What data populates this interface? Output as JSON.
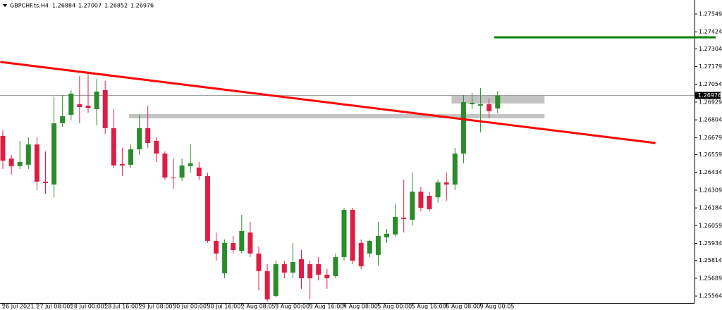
{
  "chart_data": {
    "type": "candlestick",
    "title": "GBPCHF.ts.H4",
    "up_color": "#2a8c2a",
    "down_color": "#dc1e46",
    "categories": [
      "26 Jul 2021",
      null,
      null,
      null,
      "27 Jul 08:00",
      null,
      null,
      null,
      "28 Jul 00:00",
      null,
      null,
      null,
      "28 Jul 16:00",
      null,
      null,
      null,
      "29 Jul 08:00",
      null,
      null,
      null,
      "30 Jul 00:00",
      null,
      null,
      null,
      "30 Jul 16:00",
      null,
      null,
      null,
      "2 Aug 08:05",
      null,
      null,
      null,
      "3 Aug 00:00",
      null,
      null,
      null,
      "3 Aug 16:00",
      null,
      null,
      null,
      "4 Aug 08:00",
      null,
      null,
      null,
      "5 Aug 00:00",
      null,
      null,
      null,
      "5 Aug 16:00",
      null,
      null,
      null,
      "6 Aug 08:00",
      null,
      null,
      null,
      "9 Aug 00:05",
      null,
      null
    ],
    "candles": [
      {
        "open": 1.26691,
        "high": 1.26731,
        "low": 1.26458,
        "close": 1.26517
      },
      {
        "open": 1.26532,
        "high": 1.26557,
        "low": 1.26418,
        "close": 1.26478
      },
      {
        "open": 1.26478,
        "high": 1.26656,
        "low": 1.26458,
        "close": 1.26507
      },
      {
        "open": 1.26488,
        "high": 1.26681,
        "low": 1.26458,
        "close": 1.26631
      },
      {
        "open": 1.26631,
        "high": 1.26681,
        "low": 1.26309,
        "close": 1.26369
      },
      {
        "open": 1.26369,
        "high": 1.26582,
        "low": 1.26284,
        "close": 1.26359
      },
      {
        "open": 1.26349,
        "high": 1.26969,
        "low": 1.26259,
        "close": 1.2678
      },
      {
        "open": 1.2678,
        "high": 1.26979,
        "low": 1.26755,
        "close": 1.2683
      },
      {
        "open": 1.2684,
        "high": 1.27013,
        "low": 1.26805,
        "close": 1.26989
      },
      {
        "open": 1.26914,
        "high": 1.27112,
        "low": 1.2678,
        "close": 1.26894
      },
      {
        "open": 1.26904,
        "high": 1.27142,
        "low": 1.26855,
        "close": 1.26889
      },
      {
        "open": 1.26879,
        "high": 1.27093,
        "low": 1.26765,
        "close": 1.27003
      },
      {
        "open": 1.27013,
        "high": 1.27078,
        "low": 1.26706,
        "close": 1.26746
      },
      {
        "open": 1.26746,
        "high": 1.26879,
        "low": 1.26468,
        "close": 1.26483
      },
      {
        "open": 1.26493,
        "high": 1.26607,
        "low": 1.26408,
        "close": 1.26483
      },
      {
        "open": 1.26488,
        "high": 1.26631,
        "low": 1.26468,
        "close": 1.26597
      },
      {
        "open": 1.26597,
        "high": 1.2684,
        "low": 1.26557,
        "close": 1.26746
      },
      {
        "open": 1.26746,
        "high": 1.26904,
        "low": 1.26607,
        "close": 1.26641
      },
      {
        "open": 1.26656,
        "high": 1.26681,
        "low": 1.26507,
        "close": 1.26567
      },
      {
        "open": 1.26567,
        "high": 1.26582,
        "low": 1.26383,
        "close": 1.26398
      },
      {
        "open": 1.26398,
        "high": 1.26532,
        "low": 1.26319,
        "close": 1.26393
      },
      {
        "open": 1.26398,
        "high": 1.26532,
        "low": 1.26374,
        "close": 1.26483
      },
      {
        "open": 1.26478,
        "high": 1.26631,
        "low": 1.26433,
        "close": 1.26498
      },
      {
        "open": 1.26468,
        "high": 1.26507,
        "low": 1.26383,
        "close": 1.26408
      },
      {
        "open": 1.26408,
        "high": 1.26433,
        "low": 1.25937,
        "close": 1.25952
      },
      {
        "open": 1.25952,
        "high": 1.26011,
        "low": 1.25813,
        "close": 1.25863
      },
      {
        "open": 1.25724,
        "high": 1.25962,
        "low": 1.25689,
        "close": 1.25937
      },
      {
        "open": 1.25937,
        "high": 1.25987,
        "low": 1.25863,
        "close": 1.25887
      },
      {
        "open": 1.25882,
        "high": 1.26135,
        "low": 1.25863,
        "close": 1.26021
      },
      {
        "open": 1.26011,
        "high": 1.26086,
        "low": 1.25838,
        "close": 1.25863
      },
      {
        "open": 1.25863,
        "high": 1.25912,
        "low": 1.25605,
        "close": 1.25739
      },
      {
        "open": 1.25739,
        "high": 1.25788,
        "low": 1.25525,
        "close": 1.2554
      },
      {
        "open": 1.25565,
        "high": 1.25813,
        "low": 1.25555,
        "close": 1.25788
      },
      {
        "open": 1.25788,
        "high": 1.25813,
        "low": 1.25689,
        "close": 1.25729
      },
      {
        "open": 1.25729,
        "high": 1.25937,
        "low": 1.25689,
        "close": 1.25803
      },
      {
        "open": 1.25823,
        "high": 1.25887,
        "low": 1.25615,
        "close": 1.25689
      },
      {
        "open": 1.25788,
        "high": 1.25813,
        "low": 1.2554,
        "close": 1.25689
      },
      {
        "open": 1.25788,
        "high": 1.25838,
        "low": 1.25674,
        "close": 1.25714
      },
      {
        "open": 1.25714,
        "high": 1.25753,
        "low": 1.25615,
        "close": 1.25689
      },
      {
        "open": 1.25704,
        "high": 1.25863,
        "low": 1.25689,
        "close": 1.25838
      },
      {
        "open": 1.25838,
        "high": 1.26185,
        "low": 1.25813,
        "close": 1.2617
      },
      {
        "open": 1.2617,
        "high": 1.26185,
        "low": 1.25788,
        "close": 1.25813
      },
      {
        "open": 1.25937,
        "high": 1.25962,
        "low": 1.25753,
        "close": 1.25773
      },
      {
        "open": 1.25863,
        "high": 1.25962,
        "low": 1.25838,
        "close": 1.25952
      },
      {
        "open": 1.25853,
        "high": 1.26086,
        "low": 1.25778,
        "close": 1.25987
      },
      {
        "open": 1.25977,
        "high": 1.26036,
        "low": 1.25937,
        "close": 1.26002
      },
      {
        "open": 1.25997,
        "high": 1.2621,
        "low": 1.25982,
        "close": 1.26121
      },
      {
        "open": 1.26116,
        "high": 1.26383,
        "low": 1.26011,
        "close": 1.26106
      },
      {
        "open": 1.26101,
        "high": 1.26433,
        "low": 1.26061,
        "close": 1.26299
      },
      {
        "open": 1.26299,
        "high": 1.26334,
        "low": 1.2616,
        "close": 1.26185
      },
      {
        "open": 1.26269,
        "high": 1.26299,
        "low": 1.2616,
        "close": 1.26175
      },
      {
        "open": 1.26259,
        "high": 1.26383,
        "low": 1.2622,
        "close": 1.26364
      },
      {
        "open": 1.26364,
        "high": 1.26433,
        "low": 1.26235,
        "close": 1.26349
      },
      {
        "open": 1.26349,
        "high": 1.26607,
        "low": 1.26309,
        "close": 1.26567
      },
      {
        "open": 1.26567,
        "high": 1.26979,
        "low": 1.26498,
        "close": 1.26929
      },
      {
        "open": 1.26914,
        "high": 1.26994,
        "low": 1.26879,
        "close": 1.26924
      },
      {
        "open": 1.26904,
        "high": 1.27028,
        "low": 1.26716,
        "close": 1.26914
      },
      {
        "open": 1.26914,
        "high": 1.26954,
        "low": 1.26815,
        "close": 1.26865
      },
      {
        "open": 1.26884,
        "high": 1.27007,
        "low": 1.26852,
        "close": 1.26976
      }
    ],
    "ylim": [
      1.25515,
      1.27628
    ],
    "yticks": [
      1.27549,
      1.27424,
      1.27304,
      1.27179,
      1.27054,
      1.26929,
      1.26804,
      1.26679,
      1.26559,
      1.26434,
      1.26309,
      1.26184,
      1.26059,
      1.25934,
      1.25814,
      1.25689,
      1.25564
    ],
    "trendline": {
      "x": [
        -0.3,
        76.5
      ],
      "price": [
        1.27212,
        1.26641
      ],
      "color": "#ff0000"
    },
    "hline": {
      "x": [
        57.6,
        83.6
      ],
      "price": 1.27385,
      "color": "#008000"
    },
    "zones": [
      {
        "x": [
          52.6,
          63.5
        ],
        "price": [
          1.26979,
          1.26919
        ],
        "color": "#bdbdbd"
      },
      {
        "x": [
          14.8,
          63.5
        ],
        "price": [
          1.26845,
          1.26815
        ],
        "color": "#bdbdbd"
      }
    ]
  }
}
